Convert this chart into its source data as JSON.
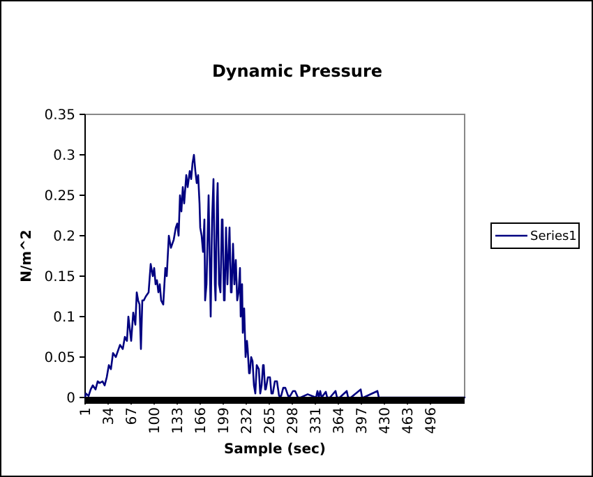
{
  "chart_data": {
    "type": "line",
    "title": "Dynamic Pressure",
    "xlabel": "Sample (sec)",
    "ylabel": "N/m^2",
    "xlim": [
      1,
      545
    ],
    "xticks": [
      1,
      34,
      67,
      100,
      133,
      166,
      199,
      232,
      265,
      298,
      331,
      364,
      397,
      430,
      463,
      496
    ],
    "ylim": [
      0,
      0.35
    ],
    "yticks": [
      0,
      0.05,
      0.1,
      0.15,
      0.2,
      0.25,
      0.3,
      0.35
    ],
    "grid": false,
    "legend": "right",
    "marker": "none",
    "line_style": "solid",
    "series": [
      {
        "name": "Series1",
        "color": "#000080",
        "x": [
          1,
          2,
          6,
          9,
          12,
          16,
          19,
          22,
          26,
          29,
          32,
          35,
          38,
          41,
          45,
          51,
          55,
          58,
          61,
          63,
          65,
          67,
          70,
          73,
          75,
          77,
          79,
          81,
          83,
          85,
          88,
          92,
          95,
          98,
          100,
          102,
          104,
          106,
          108,
          110,
          113,
          116,
          118,
          121,
          124,
          128,
          131,
          133,
          135,
          137,
          139,
          141,
          143,
          146,
          148,
          151,
          153,
          155,
          157,
          159,
          161,
          163,
          165,
          166,
          168,
          170,
          172,
          173,
          175,
          178,
          180,
          181,
          183,
          185,
          187,
          188,
          190,
          191,
          193,
          195,
          197,
          198,
          200,
          201,
          203,
          205,
          208,
          210,
          211,
          213,
          215,
          217,
          219,
          221,
          223,
          224,
          226,
          227,
          229,
          231,
          233,
          234,
          236,
          237,
          239,
          241,
          243,
          245,
          247,
          250,
          252,
          254,
          256,
          257,
          259,
          260,
          263,
          266,
          268,
          270,
          273,
          276,
          279,
          282,
          285,
          288,
          292,
          295,
          299,
          302,
          306,
          310,
          320,
          332,
          334,
          336,
          338,
          340,
          346,
          348,
          352,
          360,
          362,
          366,
          376,
          378,
          382,
          396,
          398,
          400,
          420,
          422,
          424,
          450,
          500,
          545
        ],
        "values": [
          0,
          0.005,
          0.002,
          0.01,
          0.015,
          0.01,
          0.02,
          0.018,
          0.02,
          0.015,
          0.025,
          0.04,
          0.035,
          0.055,
          0.05,
          0.065,
          0.06,
          0.075,
          0.07,
          0.1,
          0.085,
          0.07,
          0.105,
          0.09,
          0.13,
          0.12,
          0.115,
          0.06,
          0.12,
          0.12,
          0.125,
          0.13,
          0.165,
          0.15,
          0.16,
          0.14,
          0.145,
          0.13,
          0.14,
          0.12,
          0.115,
          0.16,
          0.15,
          0.2,
          0.185,
          0.195,
          0.21,
          0.215,
          0.2,
          0.25,
          0.23,
          0.26,
          0.24,
          0.275,
          0.26,
          0.28,
          0.27,
          0.29,
          0.3,
          0.28,
          0.265,
          0.275,
          0.24,
          0.21,
          0.2,
          0.18,
          0.22,
          0.12,
          0.14,
          0.25,
          0.15,
          0.1,
          0.22,
          0.27,
          0.14,
          0.12,
          0.24,
          0.265,
          0.14,
          0.13,
          0.22,
          0.22,
          0.12,
          0.12,
          0.21,
          0.14,
          0.21,
          0.13,
          0.13,
          0.19,
          0.14,
          0.17,
          0.12,
          0.13,
          0.16,
          0.1,
          0.14,
          0.08,
          0.11,
          0.05,
          0.07,
          0.06,
          0.03,
          0.03,
          0.05,
          0.045,
          0.015,
          0.005,
          0.04,
          0.035,
          0.005,
          0.015,
          0.04,
          0.04,
          0.01,
          0.01,
          0.025,
          0.025,
          0.005,
          0.005,
          0.02,
          0.02,
          0.002,
          0.002,
          0.012,
          0.012,
          0.002,
          0.002,
          0.008,
          0.008,
          0,
          0,
          0.004,
          0,
          0.008,
          0,
          0.008,
          0,
          0.007,
          0,
          0,
          0.008,
          0,
          0,
          0.008,
          0,
          0,
          0.01,
          0,
          0,
          0.008,
          0,
          0,
          0,
          0,
          0
        ]
      }
    ]
  }
}
